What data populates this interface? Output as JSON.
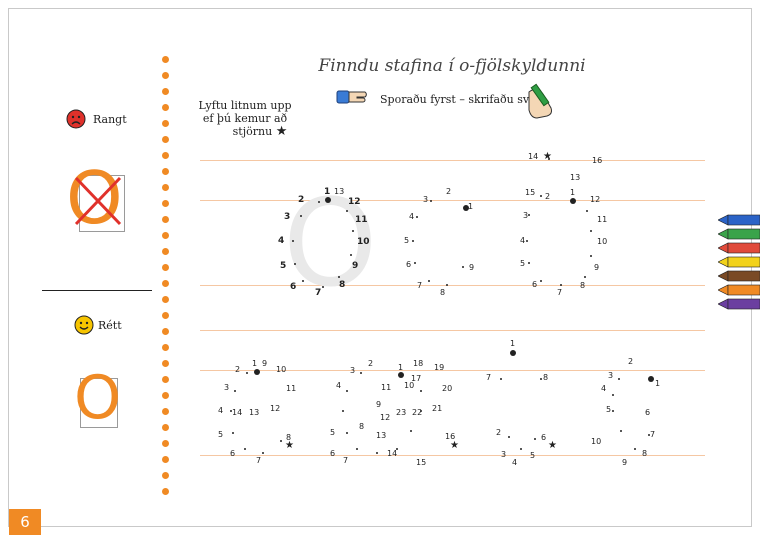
{
  "page_number": "6",
  "title": "Finndu stafina í o-fjölskyldunni",
  "instruction": "Sporaðu fyrst – skrifaðu svo",
  "note_lines": [
    "Lyftu litnum upp",
    "ef þú kemur að",
    "stjörnu"
  ],
  "wrong_label": "Rangt",
  "right_label": "Rétt",
  "letter": "O",
  "icons": {
    "sad_face": "sad-face-icon",
    "happy_face": "happy-face-icon",
    "pointing_hand": "pointing-hand-icon",
    "writing_hand": "writing-hand-icon",
    "crayons": "crayons-icon",
    "star": "star-icon"
  },
  "colors": {
    "accent": "#f08a24",
    "wrong": "#e0312b",
    "guide": "#f5c7a3",
    "face": "#f6c400"
  },
  "dot_numbers": {
    "row1_o": [
      "1",
      "13",
      "2",
      "12",
      "3",
      "11",
      "4",
      "10",
      "5",
      "9",
      "6",
      "7",
      "8"
    ],
    "row1_c": [
      "1",
      "2",
      "3",
      "4",
      "5",
      "6",
      "7",
      "8",
      "9"
    ],
    "row1_cc": [
      "14",
      "16",
      "13",
      "15",
      "2",
      "1",
      "12",
      "3",
      "11",
      "4",
      "10",
      "5",
      "9",
      "6",
      "7",
      "8"
    ],
    "row2_a": [
      "1",
      "9",
      "2",
      "10",
      "3",
      "11",
      "4",
      "14",
      "13",
      "12",
      "5",
      "8",
      "6",
      "7"
    ],
    "row2_b": [
      "1",
      "18",
      "19",
      "2",
      "17",
      "3",
      "11",
      "10",
      "20",
      "4",
      "9",
      "12",
      "23",
      "22",
      "21",
      "5",
      "8",
      "13",
      "16",
      "6",
      "14",
      "15",
      "7"
    ],
    "row2_c": [
      "1",
      "7",
      "8",
      "2",
      "6",
      "3",
      "4",
      "5"
    ],
    "row2_d": [
      "2",
      "1",
      "3",
      "4",
      "5",
      "6",
      "7",
      "10",
      "8",
      "9"
    ]
  }
}
